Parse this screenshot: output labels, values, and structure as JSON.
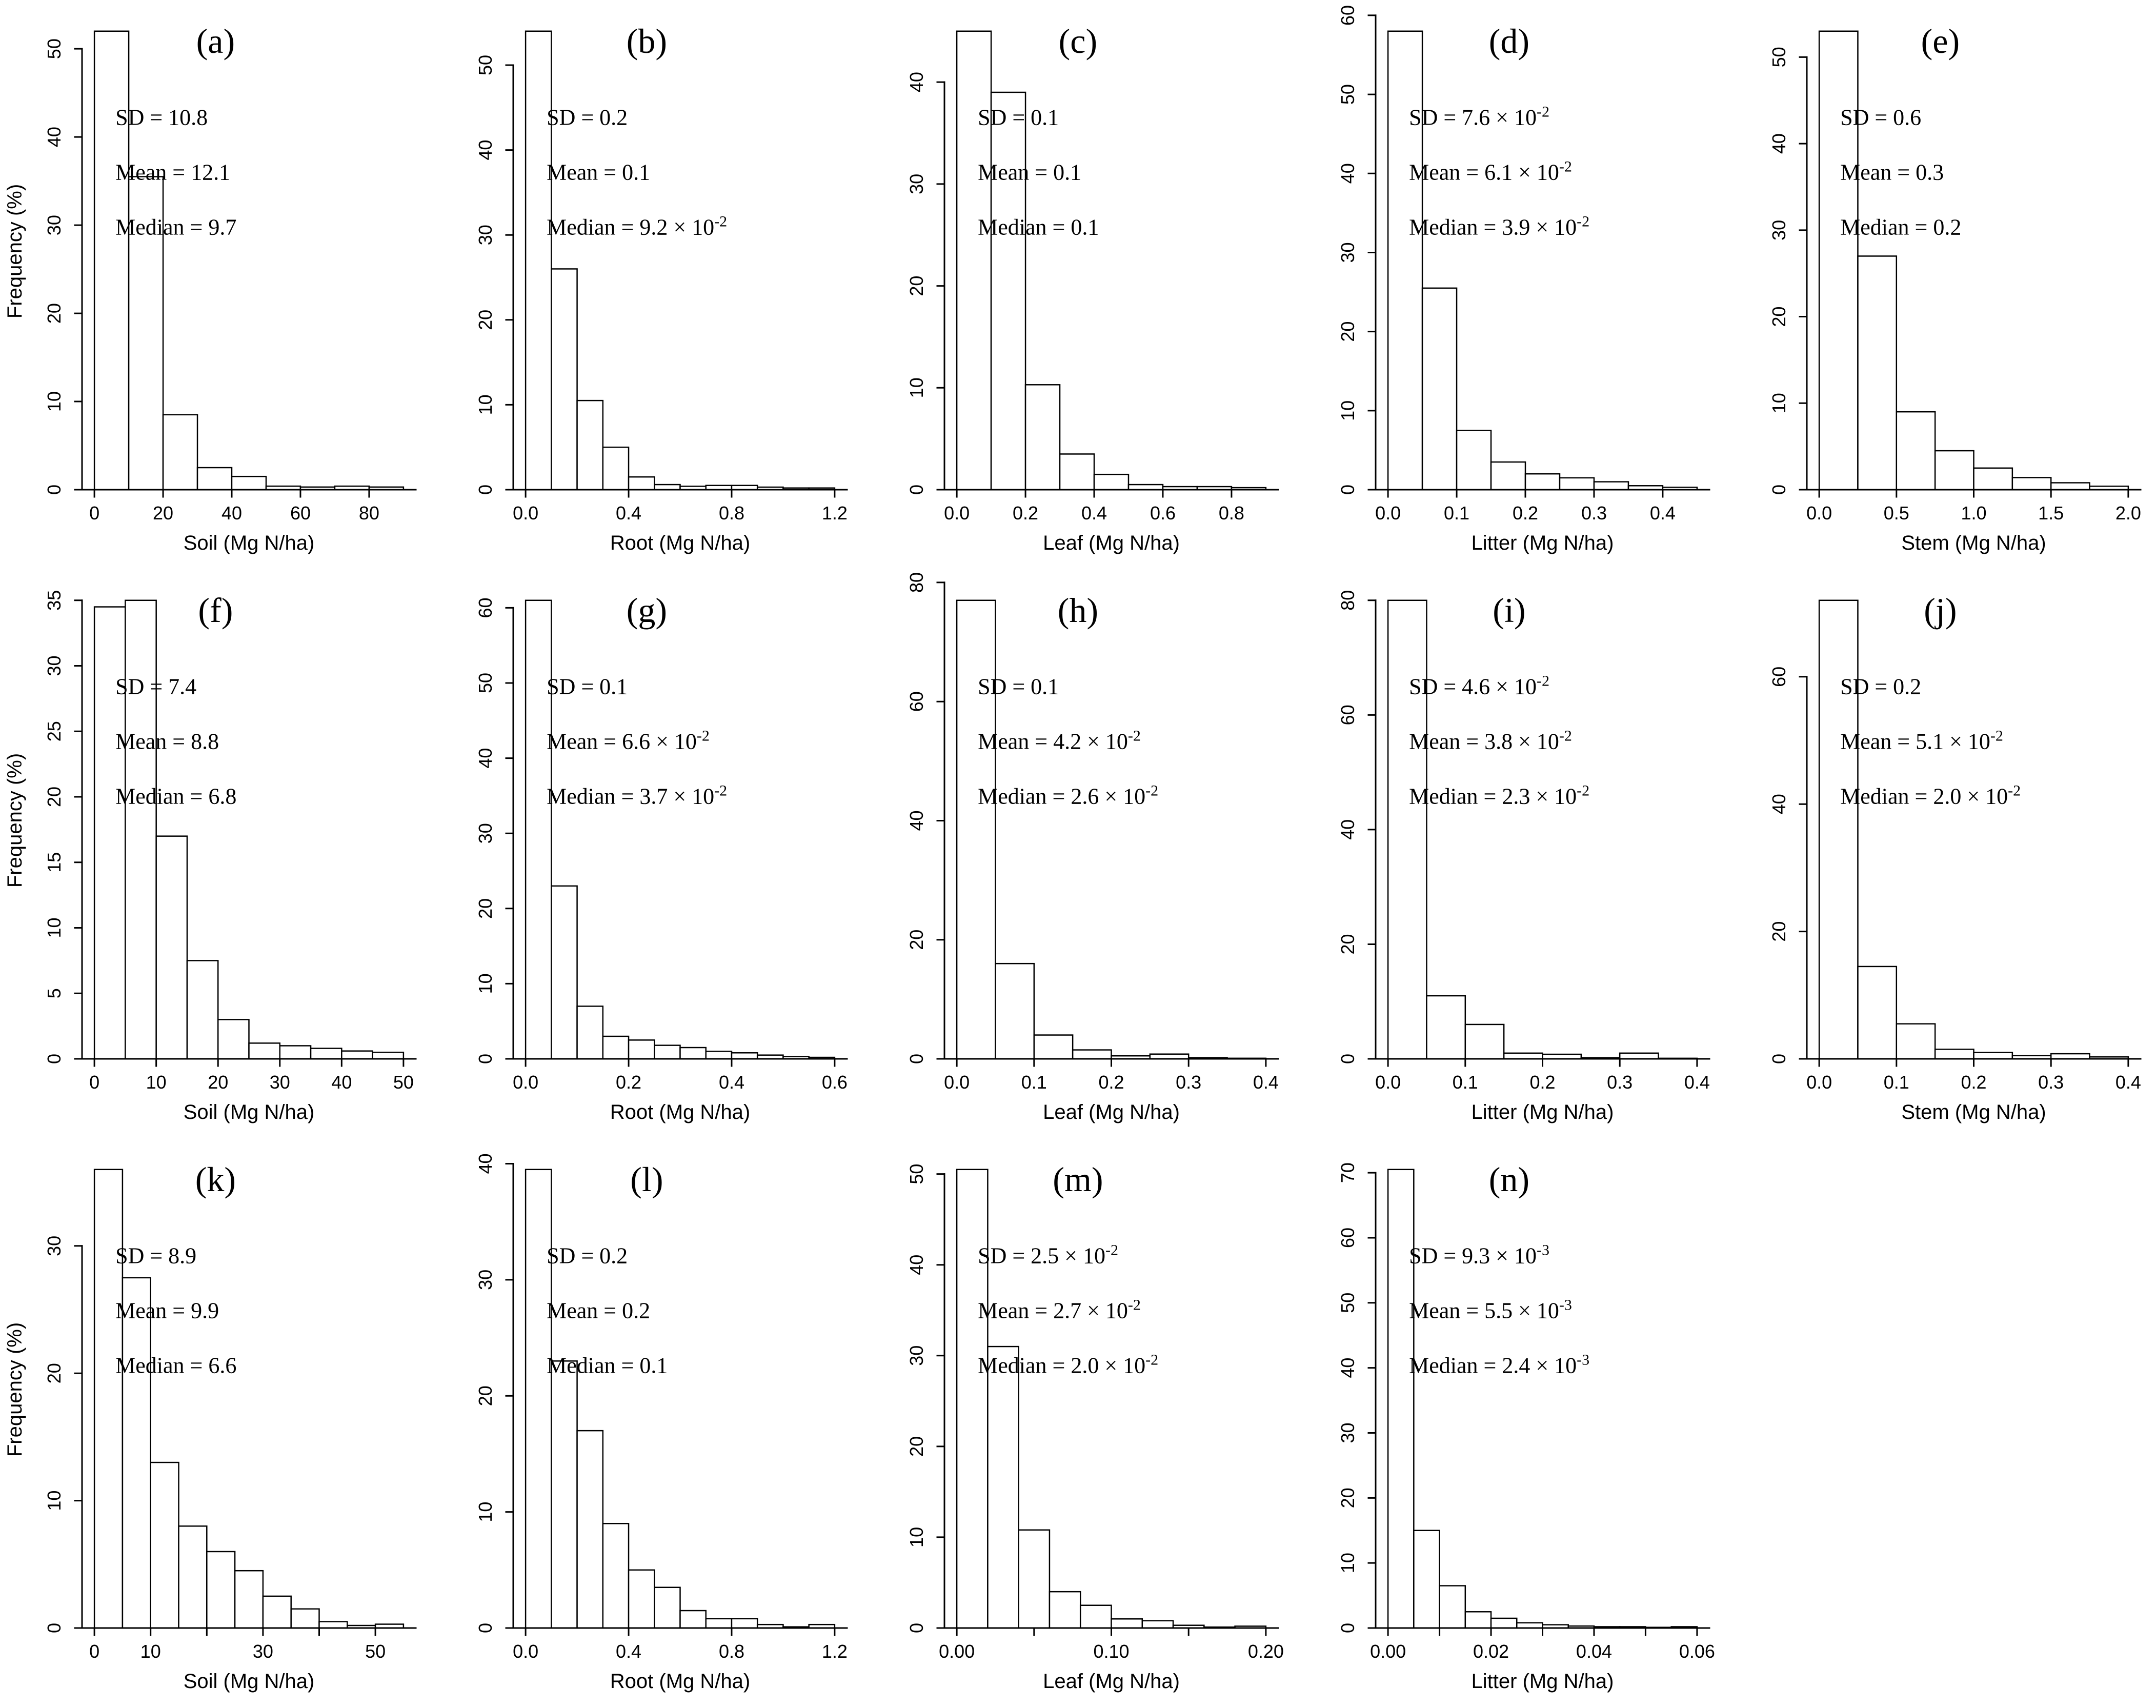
{
  "figure": {
    "background": "#ffffff",
    "shared_ylabel": "Frequency (%)",
    "line_color": "#000000"
  },
  "chart_data": [
    {
      "type": "bar",
      "id": "a",
      "letter": "(a)",
      "xlabel": "Soil (Mg N/ha)",
      "ylabel": "Frequency (%)",
      "stats": {
        "sd": "SD = 10.8",
        "mean": "Mean = 12.1",
        "median": "Median = 9.7"
      },
      "bin_width": 10,
      "values": [
        52,
        35.5,
        8.5,
        2.5,
        1.5,
        0.4,
        0.3,
        0.4,
        0.3
      ],
      "xticks": [
        0,
        20,
        40,
        60,
        80
      ],
      "xtick_labels": [
        "0",
        "20",
        "40",
        "60",
        "80"
      ],
      "yticks": [
        0,
        10,
        20,
        30,
        40,
        50
      ],
      "ylim": [
        0,
        52
      ]
    },
    {
      "type": "bar",
      "id": "b",
      "letter": "(b)",
      "xlabel": "Root (Mg N/ha)",
      "ylabel": "",
      "stats": {
        "sd": "SD = 0.2",
        "mean": "Mean = 0.1",
        "median": "Median = 9.2 × 10^-2"
      },
      "bin_width": 0.1,
      "values": [
        54,
        26,
        10.5,
        5,
        1.5,
        0.6,
        0.4,
        0.5,
        0.5,
        0.3,
        0.2,
        0.2
      ],
      "xticks": [
        0,
        0.4,
        0.8,
        1.2
      ],
      "xtick_labels": [
        "0.0",
        "0.4",
        "0.8",
        "1.2"
      ],
      "yticks": [
        0,
        10,
        20,
        30,
        40,
        50
      ],
      "ylim": [
        0,
        54
      ]
    },
    {
      "type": "bar",
      "id": "c",
      "letter": "(c)",
      "xlabel": "Leaf (Mg N/ha)",
      "ylabel": "",
      "stats": {
        "sd": "SD = 0.1",
        "mean": "Mean = 0.1",
        "median": "Median = 0.1"
      },
      "bin_width": 0.1,
      "values": [
        45,
        39,
        10.3,
        3.5,
        1.5,
        0.5,
        0.3,
        0.3,
        0.2
      ],
      "xticks": [
        0,
        0.2,
        0.4,
        0.6,
        0.8
      ],
      "xtick_labels": [
        "0.0",
        "0.2",
        "0.4",
        "0.6",
        "0.8"
      ],
      "yticks": [
        0,
        10,
        20,
        30,
        40
      ],
      "ylim": [
        0,
        45
      ]
    },
    {
      "type": "bar",
      "id": "d",
      "letter": "(d)",
      "xlabel": "Litter (Mg N/ha)",
      "ylabel": "",
      "stats": {
        "sd": "SD = 7.6 × 10^-2",
        "mean": "Mean = 6.1 × 10^-2",
        "median": "Median = 3.9 × 10^-2"
      },
      "bin_width": 0.05,
      "values": [
        58,
        25.5,
        7.5,
        3.5,
        2,
        1.5,
        1,
        0.5,
        0.3
      ],
      "xticks": [
        0,
        0.1,
        0.2,
        0.3,
        0.4
      ],
      "xtick_labels": [
        "0.0",
        "0.1",
        "0.2",
        "0.3",
        "0.4"
      ],
      "yticks": [
        0,
        10,
        20,
        30,
        40,
        50,
        60
      ],
      "ylim": [
        0,
        58
      ]
    },
    {
      "type": "bar",
      "id": "e",
      "letter": "(e)",
      "xlabel": "Stem (Mg N/ha)",
      "ylabel": "",
      "stats": {
        "sd": "SD = 0.6",
        "mean": "Mean = 0.3",
        "median": "Median = 0.2"
      },
      "bin_width": 0.25,
      "values": [
        53,
        27,
        9,
        4.5,
        2.5,
        1.4,
        0.8,
        0.4
      ],
      "xticks": [
        0,
        0.5,
        1.0,
        1.5,
        2.0
      ],
      "xtick_labels": [
        "0.0",
        "0.5",
        "1.0",
        "1.5",
        "2.0"
      ],
      "yticks": [
        0,
        10,
        20,
        30,
        40,
        50
      ],
      "ylim": [
        0,
        53
      ]
    },
    {
      "type": "bar",
      "id": "f",
      "letter": "(f)",
      "xlabel": "Soil (Mg N/ha)",
      "ylabel": "Frequency (%)",
      "stats": {
        "sd": "SD = 7.4",
        "mean": "Mean = 8.8",
        "median": "Median = 6.8"
      },
      "bin_width": 5,
      "values": [
        34.5,
        35,
        17,
        7.5,
        3,
        1.2,
        1,
        0.8,
        0.6,
        0.5
      ],
      "xticks": [
        0,
        10,
        20,
        30,
        40,
        50
      ],
      "xtick_labels": [
        "0",
        "10",
        "20",
        "30",
        "40",
        "50"
      ],
      "yticks": [
        0,
        5,
        10,
        15,
        20,
        25,
        30,
        35
      ],
      "ylim": [
        0,
        35
      ]
    },
    {
      "type": "bar",
      "id": "g",
      "letter": "(g)",
      "xlabel": "Root (Mg N/ha)",
      "ylabel": "",
      "stats": {
        "sd": "SD = 0.1",
        "mean": "Mean = 6.6 × 10^-2",
        "median": "Median = 3.7 × 10^-2"
      },
      "bin_width": 0.05,
      "values": [
        61,
        23,
        7,
        3,
        2.5,
        1.8,
        1.5,
        1,
        0.8,
        0.5,
        0.3,
        0.2
      ],
      "xticks": [
        0,
        0.2,
        0.4,
        0.6
      ],
      "xtick_labels": [
        "0.0",
        "0.2",
        "0.4",
        "0.6"
      ],
      "yticks": [
        0,
        10,
        20,
        30,
        40,
        50,
        60
      ],
      "ylim": [
        0,
        61
      ]
    },
    {
      "type": "bar",
      "id": "h",
      "letter": "(h)",
      "xlabel": "Leaf (Mg N/ha)",
      "ylabel": "",
      "stats": {
        "sd": "SD = 0.1",
        "mean": "Mean = 4.2 × 10^-2",
        "median": "Median = 2.6 × 10^-2"
      },
      "bin_width": 0.05,
      "values": [
        77,
        16,
        4,
        1.5,
        0.5,
        0.8,
        0.2,
        0.1
      ],
      "xticks": [
        0,
        0.1,
        0.2,
        0.3,
        0.4
      ],
      "xtick_labels": [
        "0.0",
        "0.1",
        "0.2",
        "0.3",
        "0.4"
      ],
      "yticks": [
        0,
        20,
        40,
        60,
        80
      ],
      "ylim": [
        0,
        77
      ]
    },
    {
      "type": "bar",
      "id": "i",
      "letter": "(i)",
      "xlabel": "Litter (Mg N/ha)",
      "ylabel": "",
      "stats": {
        "sd": "SD = 4.6 × 10^-2",
        "mean": "Mean = 3.8 × 10^-2",
        "median": "Median = 2.3 × 10^-2"
      },
      "bin_width": 0.05,
      "values": [
        80,
        11,
        6,
        1,
        0.8,
        0.2,
        1,
        0.1
      ],
      "xticks": [
        0,
        0.1,
        0.2,
        0.3,
        0.4
      ],
      "xtick_labels": [
        "0.0",
        "0.1",
        "0.2",
        "0.3",
        "0.4"
      ],
      "yticks": [
        0,
        20,
        40,
        60,
        80
      ],
      "ylim": [
        0,
        80
      ]
    },
    {
      "type": "bar",
      "id": "j",
      "letter": "(j)",
      "xlabel": "Stem (Mg N/ha)",
      "ylabel": "",
      "stats": {
        "sd": "SD = 0.2",
        "mean": "Mean = 5.1 × 10^-2",
        "median": "Median = 2.0 × 10^-2"
      },
      "bin_width": 0.05,
      "values": [
        72,
        14.5,
        5.5,
        1.5,
        1,
        0.5,
        0.8,
        0.3
      ],
      "xticks": [
        0,
        0.1,
        0.2,
        0.3,
        0.4
      ],
      "xtick_labels": [
        "0.0",
        "0.1",
        "0.2",
        "0.3",
        "0.4"
      ],
      "yticks": [
        0,
        20,
        40,
        60
      ],
      "ylim": [
        0,
        72
      ]
    },
    {
      "type": "bar",
      "id": "k",
      "letter": "(k)",
      "xlabel": "Soil (Mg N/ha)",
      "ylabel": "Frequency (%)",
      "stats": {
        "sd": "SD = 8.9",
        "mean": "Mean = 9.9",
        "median": "Median = 6.6"
      },
      "bin_width": 5,
      "values": [
        36,
        27.5,
        13,
        8,
        6,
        4.5,
        2.5,
        1.5,
        0.5,
        0.2,
        0.3
      ],
      "xticks": [
        0,
        10,
        20,
        30,
        40,
        50
      ],
      "xtick_labels": [
        "0",
        "10",
        "",
        "30",
        "",
        "50"
      ],
      "yticks": [
        0,
        10,
        20,
        30
      ],
      "ylim": [
        0,
        36
      ]
    },
    {
      "type": "bar",
      "id": "l",
      "letter": "(l)",
      "xlabel": "Root (Mg N/ha)",
      "ylabel": "",
      "stats": {
        "sd": "SD = 0.2",
        "mean": "Mean = 0.2",
        "median": "Median = 0.1"
      },
      "bin_width": 0.1,
      "values": [
        39.5,
        23,
        17,
        9,
        5,
        3.5,
        1.5,
        0.8,
        0.8,
        0.3,
        0.1,
        0.3
      ],
      "xticks": [
        0,
        0.4,
        0.8,
        1.2
      ],
      "xtick_labels": [
        "0.0",
        "0.4",
        "0.8",
        "1.2"
      ],
      "yticks": [
        0,
        10,
        20,
        30,
        40
      ],
      "ylim": [
        0,
        39.5
      ]
    },
    {
      "type": "bar",
      "id": "m",
      "letter": "(m)",
      "xlabel": "Leaf (Mg N/ha)",
      "ylabel": "",
      "stats": {
        "sd": "SD = 2.5 × 10^-2",
        "mean": "Mean = 2.7 × 10^-2",
        "median": "Median = 2.0 × 10^-2"
      },
      "bin_width": 0.02,
      "values": [
        50.5,
        31,
        10.8,
        4,
        2.5,
        1,
        0.8,
        0.3,
        0.1,
        0.2
      ],
      "xticks": [
        0,
        0.05,
        0.1,
        0.15,
        0.2
      ],
      "xtick_labels": [
        "0.00",
        "",
        "0.10",
        "",
        "0.20"
      ],
      "yticks": [
        0,
        10,
        20,
        30,
        40,
        50
      ],
      "ylim": [
        0,
        50.5
      ]
    },
    {
      "type": "bar",
      "id": "n",
      "letter": "(n)",
      "xlabel": "Litter (Mg N/ha)",
      "ylabel": "",
      "stats": {
        "sd": "SD = 9.3 × 10^-3",
        "mean": "Mean = 5.5 × 10^-3",
        "median": "Median = 2.4 × 10^-3"
      },
      "bin_width": 0.005,
      "values": [
        70.5,
        15,
        6.5,
        2.5,
        1.5,
        0.8,
        0.5,
        0.3,
        0.2,
        0.2,
        0.1,
        0.2
      ],
      "xticks": [
        0,
        0.01,
        0.02,
        0.03,
        0.04,
        0.05,
        0.06
      ],
      "xtick_labels": [
        "0.00",
        "",
        "0.02",
        "",
        "0.04",
        "",
        "0.06"
      ],
      "yticks": [
        0,
        10,
        20,
        30,
        40,
        50,
        60,
        70
      ],
      "ylim": [
        0,
        70.5
      ]
    }
  ]
}
